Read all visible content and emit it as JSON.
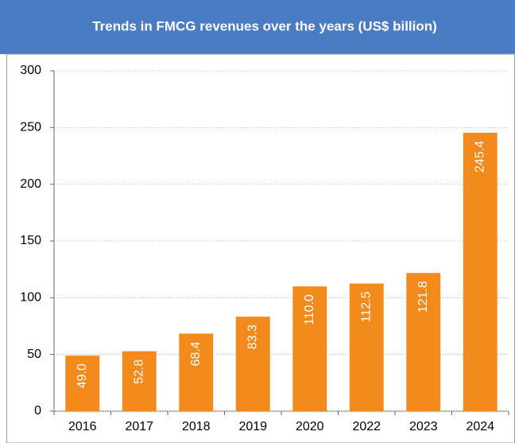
{
  "chart_data": {
    "type": "bar",
    "title": "Trends in FMCG revenues over the years (US$ billion)",
    "categories": [
      "2016",
      "2017",
      "2018",
      "2019",
      "2020",
      "2022",
      "2023",
      "2024"
    ],
    "values": [
      49.0,
      52.8,
      68.4,
      83.3,
      110.0,
      112.5,
      121.8,
      245.4
    ],
    "value_labels": [
      "49.0",
      "52.8",
      "68.4",
      "83.3",
      "110.0",
      "112.5",
      "121.8",
      "245.4"
    ],
    "color": "#f28a1c",
    "ylim": [
      0,
      300
    ],
    "yticks": [
      0,
      50,
      100,
      150,
      200,
      250,
      300
    ],
    "grid": true
  }
}
